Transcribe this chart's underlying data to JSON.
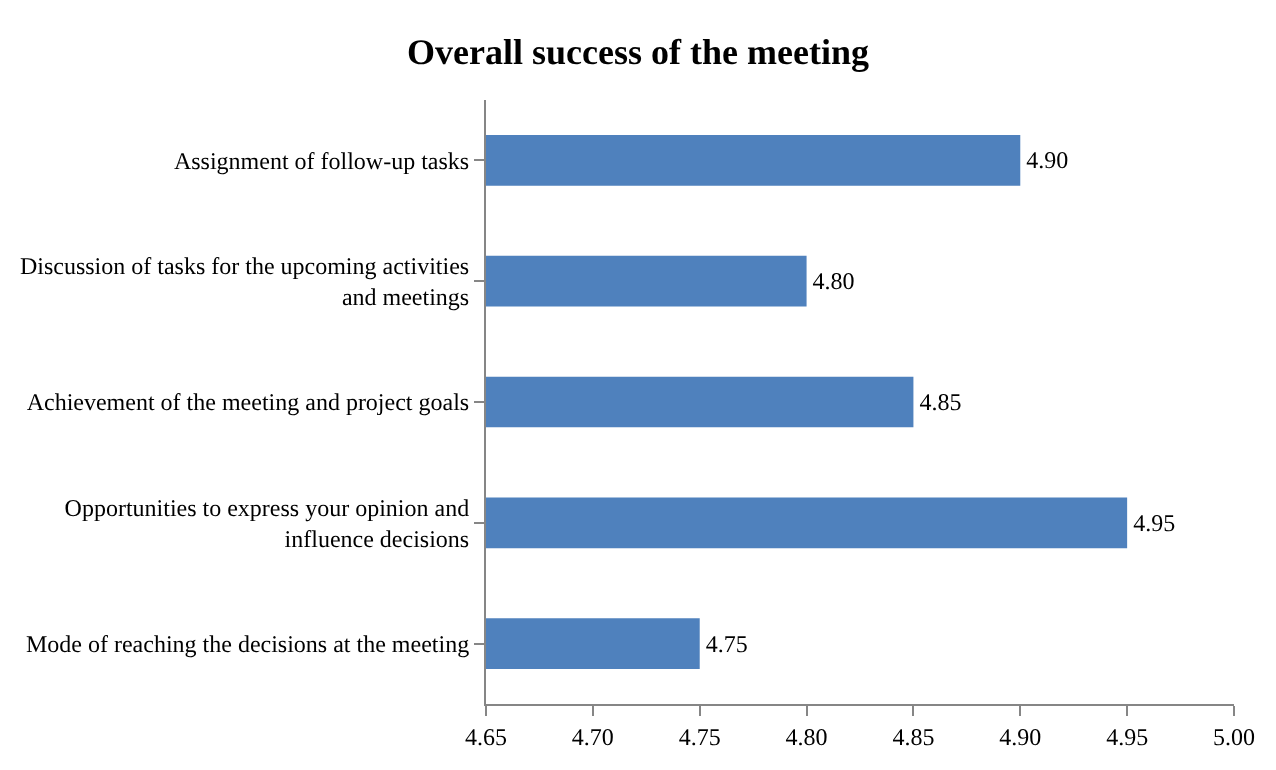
{
  "chart_data": {
    "type": "bar",
    "orientation": "horizontal",
    "title": "Overall success of the meeting",
    "categories": [
      "Assignment of follow-up tasks",
      "Discussion of tasks for the upcoming activities\nand meetings",
      "Achievement of the meeting and project goals",
      "Opportunities to express your opinion and\ninfluence decisions",
      "Mode of reaching the decisions at the meeting"
    ],
    "values": [
      4.9,
      4.8,
      4.85,
      4.95,
      4.75
    ],
    "value_labels": [
      "4.90",
      "4.80",
      "4.85",
      "4.95",
      "4.75"
    ],
    "color": "#4f81bd",
    "xlim": [
      4.65,
      5.0
    ],
    "xticks": [
      4.65,
      {
        "value": 4.7,
        "label": "4.70"
      },
      4.75,
      {
        "value": 4.8,
        "label": "4.80"
      },
      4.85,
      {
        "value": 4.9,
        "label": "4.90"
      },
      4.95,
      {
        "value": 5.0,
        "label": "5.00"
      }
    ],
    "grid": false,
    "legend": false
  }
}
